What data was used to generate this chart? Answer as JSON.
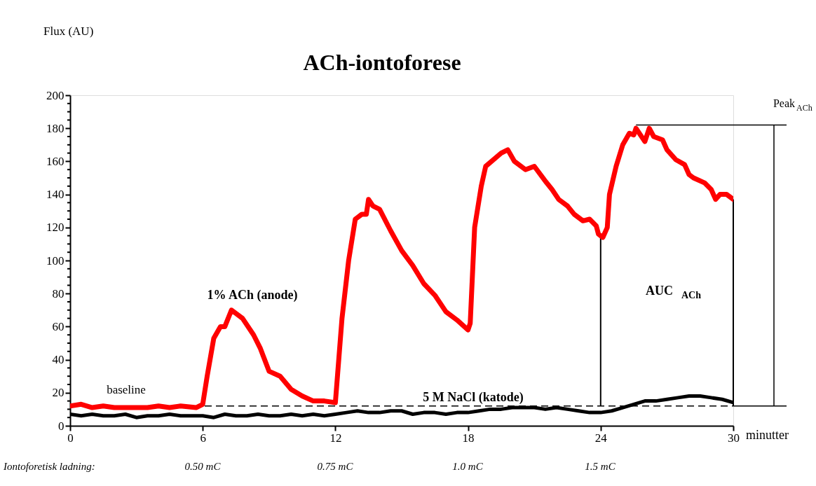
{
  "chart_data": {
    "type": "line",
    "title": "ACh-iontoforese",
    "ylabel": "Flux (AU)",
    "xlabel": "minutter",
    "xlim": [
      0,
      30
    ],
    "xticks": [
      0,
      6,
      12,
      18,
      24,
      30
    ],
    "ylim": [
      0,
      200
    ],
    "yticks": [
      0,
      {
        "value": 5,
        "label": null
      },
      {
        "value": 10,
        "label": null
      },
      {
        "value": 15,
        "label": null
      },
      20,
      {
        "value": 25,
        "label": null
      },
      {
        "value": 30,
        "label": null
      },
      {
        "value": 35,
        "label": null
      },
      40,
      {
        "value": 45,
        "label": null
      },
      {
        "value": 50,
        "label": null
      },
      {
        "value": 55,
        "label": null
      },
      60,
      {
        "value": 65,
        "label": null
      },
      {
        "value": 70,
        "label": null
      },
      {
        "value": 75,
        "label": null
      },
      80,
      {
        "value": 85,
        "label": null
      },
      {
        "value": 90,
        "label": null
      },
      {
        "value": 95,
        "label": null
      },
      100,
      {
        "value": 105,
        "label": null
      },
      {
        "value": 110,
        "label": null
      },
      {
        "value": 115,
        "label": null
      },
      120,
      {
        "value": 125,
        "label": null
      },
      {
        "value": 130,
        "label": null
      },
      {
        "value": 135,
        "label": null
      },
      140,
      {
        "value": 145,
        "label": null
      },
      {
        "value": 150,
        "label": null
      },
      {
        "value": 155,
        "label": null
      },
      160,
      {
        "value": 165,
        "label": null
      },
      {
        "value": 170,
        "label": null
      },
      {
        "value": 175,
        "label": null
      },
      180,
      {
        "value": 185,
        "label": null
      },
      {
        "value": 190,
        "label": null
      },
      {
        "value": 195,
        "label": null
      },
      200
    ],
    "grid": false,
    "marker": "none",
    "line_style": "solid",
    "series": [
      {
        "color": "#ff0000",
        "x": [
          0,
          0.5,
          1,
          1.5,
          2,
          3,
          3.5,
          4,
          4.5,
          5,
          5.7,
          6,
          6.2,
          6.5,
          6.8,
          7,
          7.3,
          7.8,
          8.3,
          8.6,
          9,
          9.5,
          10,
          10.5,
          11,
          11.5,
          12,
          12.3,
          12.6,
          12.9,
          13.2,
          13.4,
          13.5,
          13.7,
          14,
          14.5,
          15,
          15.5,
          16,
          16.5,
          17,
          17.5,
          18,
          18.1,
          18.3,
          18.6,
          18.8,
          19.5,
          19.8,
          20.1,
          20.6,
          21,
          21.5,
          21.8,
          22.1,
          22.5,
          22.8,
          23.2,
          23.5,
          23.8,
          23.9,
          24,
          24.1,
          24.3,
          24.4,
          24.7,
          25,
          25.3,
          25.5,
          25.6,
          26,
          26.2,
          26.4,
          26.8,
          27,
          27.4,
          27.8,
          28,
          28.2,
          28.7,
          29,
          29.2,
          29.4,
          29.7,
          30
        ],
        "values": [
          12,
          13,
          11,
          12,
          11,
          11,
          11,
          12,
          11,
          12,
          11,
          13,
          30,
          53,
          60,
          60,
          70,
          65,
          55,
          47,
          33,
          30,
          22,
          18,
          15,
          15,
          14,
          65,
          100,
          125,
          128,
          128,
          137,
          133,
          131,
          118,
          106,
          97,
          86,
          79,
          69,
          64,
          58,
          62,
          120,
          145,
          157,
          165,
          167,
          160,
          155,
          157,
          148,
          143,
          137,
          133,
          128,
          124,
          125,
          121,
          116,
          115,
          114,
          120,
          140,
          157,
          170,
          177,
          176,
          180,
          172,
          180,
          175,
          173,
          167,
          161,
          158,
          152,
          150,
          147,
          143,
          137,
          140,
          140,
          137
        ]
      },
      {
        "color": "#000000",
        "x": [
          0,
          0.5,
          1,
          1.5,
          2,
          2.5,
          3,
          3.5,
          4,
          4.5,
          5,
          5.5,
          6,
          6.5,
          7,
          7.5,
          8,
          8.5,
          9,
          9.5,
          10,
          10.5,
          11,
          11.5,
          12,
          12.5,
          13,
          13.5,
          14,
          14.5,
          15,
          15.5,
          16,
          16.5,
          17,
          17.5,
          18,
          18.5,
          19,
          19.5,
          20,
          20.5,
          21,
          21.5,
          22,
          22.5,
          23,
          23.5,
          24,
          24.5,
          25,
          25.5,
          26,
          26.5,
          27,
          27.5,
          28,
          28.5,
          29,
          29.5,
          30
        ],
        "values": [
          7,
          6,
          7,
          6,
          6,
          7,
          5,
          6,
          6,
          7,
          6,
          6,
          6,
          5,
          7,
          6,
          6,
          7,
          6,
          6,
          7,
          6,
          7,
          6,
          7,
          8,
          9,
          8,
          8,
          9,
          9,
          7,
          8,
          8,
          7,
          8,
          8,
          9,
          10,
          10,
          11,
          11,
          11,
          10,
          11,
          10,
          9,
          8,
          8,
          9,
          11,
          13,
          15,
          15,
          16,
          17,
          18,
          18,
          17,
          16,
          14
        ]
      }
    ],
    "ref_lines": [
      {
        "axis": "y",
        "value": 12,
        "line_style": "dashed"
      },
      {
        "axis": "y",
        "value": 182,
        "label": "Peak$_{ACh}$"
      },
      {
        "axis": "x",
        "value": 24
      },
      {
        "axis": "x",
        "value": 30
      }
    ],
    "annotations": [
      "baseline",
      "1% ACh (anode)",
      "5 M NaCl (katode)",
      "AUC $_{ACh}$",
      "Iontoforetisk ladning:",
      "0.50 mC",
      "0.75 mC",
      "1.0 mC",
      "1.5 mC"
    ]
  }
}
